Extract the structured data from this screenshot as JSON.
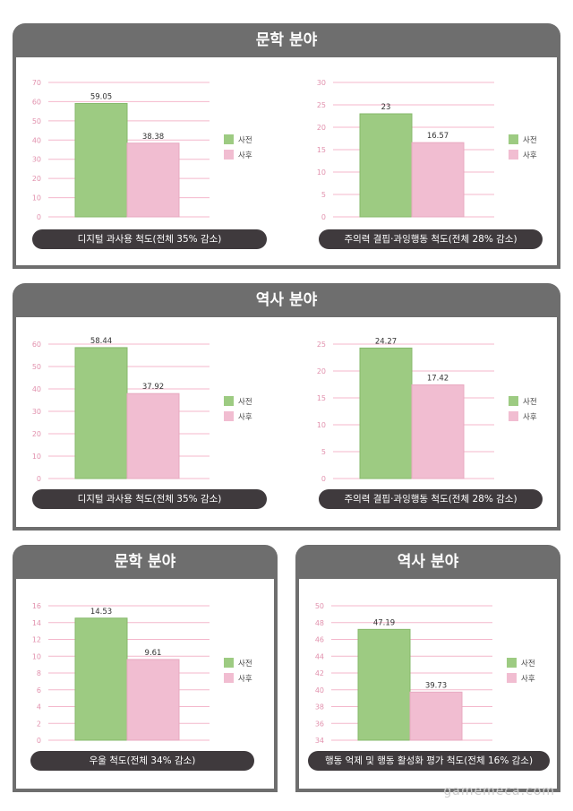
{
  "colors": {
    "before": "#9dcb82",
    "after": "#f1bdd1",
    "grid": "#f4b7cb",
    "tick": "#e292ae",
    "header": "#6e6e6e",
    "caption_bg": "#3f3a3d"
  },
  "legend": {
    "before": "사전",
    "after": "사후"
  },
  "watermark": "gamemeca.com",
  "panels": [
    {
      "title": "문학 분야"
    },
    {
      "title": "역사 분야"
    },
    {
      "title": "문학 분야"
    },
    {
      "title": "역사 분야"
    }
  ],
  "chart_data": [
    {
      "type": "bar",
      "caption": "디지털 과사용 척도(전체 35% 감소)",
      "categories": [
        "사전",
        "사후"
      ],
      "values": [
        59.05,
        38.38
      ],
      "value_labels": [
        "59.05",
        "38.38"
      ],
      "ylim": [
        0,
        70
      ],
      "yticks": [
        0,
        10,
        20,
        30,
        40,
        50,
        60,
        70
      ],
      "grid": true,
      "legend": "right"
    },
    {
      "type": "bar",
      "caption": "주의력 결핍·과잉행동 척도(전체 28% 감소)",
      "categories": [
        "사전",
        "사후"
      ],
      "values": [
        23,
        16.57
      ],
      "value_labels": [
        "23",
        "16.57"
      ],
      "ylim": [
        0,
        30
      ],
      "yticks": [
        0,
        5,
        10,
        15,
        20,
        25,
        30
      ],
      "grid": true,
      "legend": "right"
    },
    {
      "type": "bar",
      "caption": "디지털 과사용 척도(전체 35% 감소)",
      "categories": [
        "사전",
        "사후"
      ],
      "values": [
        58.44,
        37.92
      ],
      "value_labels": [
        "58.44",
        "37.92"
      ],
      "ylim": [
        0,
        60
      ],
      "yticks": [
        0,
        10,
        20,
        30,
        40,
        50,
        60
      ],
      "grid": true,
      "legend": "right"
    },
    {
      "type": "bar",
      "caption": "주의력 결핍·과잉행동 척도(전체 28% 감소)",
      "categories": [
        "사전",
        "사후"
      ],
      "values": [
        24.27,
        17.42
      ],
      "value_labels": [
        "24.27",
        "17.42"
      ],
      "ylim": [
        0,
        25
      ],
      "yticks": [
        0,
        5,
        10,
        15,
        20,
        25
      ],
      "grid": true,
      "legend": "right"
    },
    {
      "type": "bar",
      "caption": "우울 척도(전체 34% 감소)",
      "categories": [
        "사전",
        "사후"
      ],
      "values": [
        14.53,
        9.61
      ],
      "value_labels": [
        "14.53",
        "9.61"
      ],
      "ylim": [
        0,
        16
      ],
      "yticks": [
        0,
        2,
        4,
        6,
        8,
        10,
        12,
        14,
        16
      ],
      "grid": true,
      "legend": "right"
    },
    {
      "type": "bar",
      "caption": "행동 억제 및 행동 활성화 평가 척도(전체 16% 감소)",
      "categories": [
        "사전",
        "사후"
      ],
      "values": [
        47.19,
        39.73
      ],
      "value_labels": [
        "47.19",
        "39.73"
      ],
      "ylim": [
        34,
        50
      ],
      "yticks": [
        34,
        36,
        38,
        40,
        42,
        44,
        46,
        48,
        50
      ],
      "grid": true,
      "legend": "right"
    }
  ]
}
